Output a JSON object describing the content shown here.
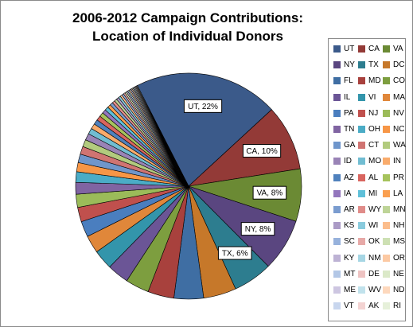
{
  "chart_data": {
    "type": "pie",
    "title": "2006-2012 Campaign  Contributions:",
    "subtitle": "Location of Individual  Donors",
    "legend_position": "right",
    "slices": [
      {
        "label": "UT",
        "value": 22,
        "color": "#3b5a8a"
      },
      {
        "label": "CA",
        "value": 10,
        "color": "#933a37"
      },
      {
        "label": "VA",
        "value": 8,
        "color": "#6b8a34"
      },
      {
        "label": "NY",
        "value": 8,
        "color": "#5a4680"
      },
      {
        "label": "TX",
        "value": 6,
        "color": "#2d7d8f"
      },
      {
        "label": "DC",
        "value": 5,
        "color": "#c6782a"
      },
      {
        "label": "FL",
        "value": 4.5,
        "color": "#3f6ea3"
      },
      {
        "label": "MD",
        "value": 4,
        "color": "#a8413d"
      },
      {
        "label": "CO",
        "value": 3.6,
        "color": "#7d9e3f"
      },
      {
        "label": "IL",
        "value": 3.3,
        "color": "#6b5596"
      },
      {
        "label": "VI",
        "value": 3,
        "color": "#3395ab"
      },
      {
        "label": "MA",
        "value": 2.7,
        "color": "#e0873a"
      },
      {
        "label": "PA",
        "value": 2.4,
        "color": "#4a7ebf"
      },
      {
        "label": "NJ",
        "value": 2.2,
        "color": "#c0504d"
      },
      {
        "label": "NV",
        "value": 2,
        "color": "#9bbb59"
      },
      {
        "label": "TN",
        "value": 1.8,
        "color": "#8064a2"
      },
      {
        "label": "OH",
        "value": 1.6,
        "color": "#4bacc6"
      },
      {
        "label": "NC",
        "value": 1.4,
        "color": "#f79646"
      },
      {
        "label": "GA",
        "value": 1.3,
        "color": "#6f96cb"
      },
      {
        "label": "CT",
        "value": 1.2,
        "color": "#d07472"
      },
      {
        "label": "WA",
        "value": 1.1,
        "color": "#b2cb7e"
      },
      {
        "label": "ID",
        "value": 1,
        "color": "#9983b6"
      },
      {
        "label": "MO",
        "value": 0.9,
        "color": "#71bdd2"
      },
      {
        "label": "IN",
        "value": 0.8,
        "color": "#f9ab6b"
      },
      {
        "label": "AZ",
        "value": 0.75,
        "color": "#4f81bd"
      },
      {
        "label": "AL",
        "value": 0.7,
        "color": "#d9655f"
      },
      {
        "label": "PR",
        "value": 0.65,
        "color": "#a6c35c"
      },
      {
        "label": "IA",
        "value": 0.6,
        "color": "#9376bd"
      },
      {
        "label": "MI",
        "value": 0.55,
        "color": "#5fc0d9"
      },
      {
        "label": "LA",
        "value": 0.5,
        "color": "#fa9f50"
      },
      {
        "label": "AR",
        "value": 0.46,
        "color": "#7a9ccf"
      },
      {
        "label": "WY",
        "value": 0.43,
        "color": "#e08c89"
      },
      {
        "label": "MN",
        "value": 0.4,
        "color": "#bed497"
      },
      {
        "label": "KS",
        "value": 0.37,
        "color": "#ab9bc6"
      },
      {
        "label": "WI",
        "value": 0.34,
        "color": "#8acbdd"
      },
      {
        "label": "NH",
        "value": 0.31,
        "color": "#fbbd8c"
      },
      {
        "label": "SC",
        "value": 0.29,
        "color": "#97b2dc"
      },
      {
        "label": "OK",
        "value": 0.27,
        "color": "#e7a9a7"
      },
      {
        "label": "MS",
        "value": 0.25,
        "color": "#cde0b3"
      },
      {
        "label": "KY",
        "value": 0.23,
        "color": "#bdb2d4"
      },
      {
        "label": "NM",
        "value": 0.21,
        "color": "#a6d6e4"
      },
      {
        "label": "OR",
        "value": 0.2,
        "color": "#fcc9a3"
      },
      {
        "label": "MT",
        "value": 0.18,
        "color": "#b3c7e6"
      },
      {
        "label": "DE",
        "value": 0.17,
        "color": "#eec3c2"
      },
      {
        "label": "NE",
        "value": 0.16,
        "color": "#dbe9c8"
      },
      {
        "label": "ME",
        "value": 0.15,
        "color": "#cdc6e1"
      },
      {
        "label": "WV",
        "value": 0.14,
        "color": "#c1e2ec"
      },
      {
        "label": "ND",
        "value": 0.13,
        "color": "#fdd8bd"
      },
      {
        "label": "VT",
        "value": 0.12,
        "color": "#c8d6ee"
      },
      {
        "label": "AK",
        "value": 0.11,
        "color": "#f3d3d2"
      },
      {
        "label": "RI",
        "value": 0.1,
        "color": "#e6f0da"
      }
    ],
    "data_labels": [
      {
        "text": "UT, 22%",
        "slice": "UT"
      },
      {
        "text": "CA, 10%",
        "slice": "CA"
      },
      {
        "text": "VA, 8%",
        "slice": "VA"
      },
      {
        "text": "NY, 8%",
        "slice": "NY"
      },
      {
        "text": "TX, 6%",
        "slice": "TX"
      }
    ]
  }
}
